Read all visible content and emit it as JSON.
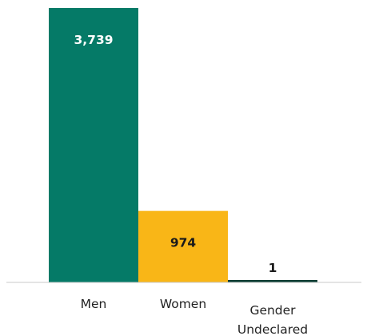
{
  "chart_data": {
    "type": "bar",
    "categories": [
      [
        "Men"
      ],
      [
        "Women"
      ],
      [
        "Gender",
        "Undeclared"
      ]
    ],
    "values": [
      3739,
      974,
      1
    ],
    "value_labels": [
      "3,739",
      "974",
      "1"
    ],
    "colors": [
      "#057a67",
      "#f9b617",
      "#063b30"
    ],
    "value_label_colors": [
      "#ffffff",
      "#1a1a1a",
      "#1a1a1a"
    ],
    "title": "",
    "xlabel": "",
    "ylabel": "",
    "ylim": [
      0,
      3739
    ],
    "grid": false,
    "legend": "none"
  }
}
